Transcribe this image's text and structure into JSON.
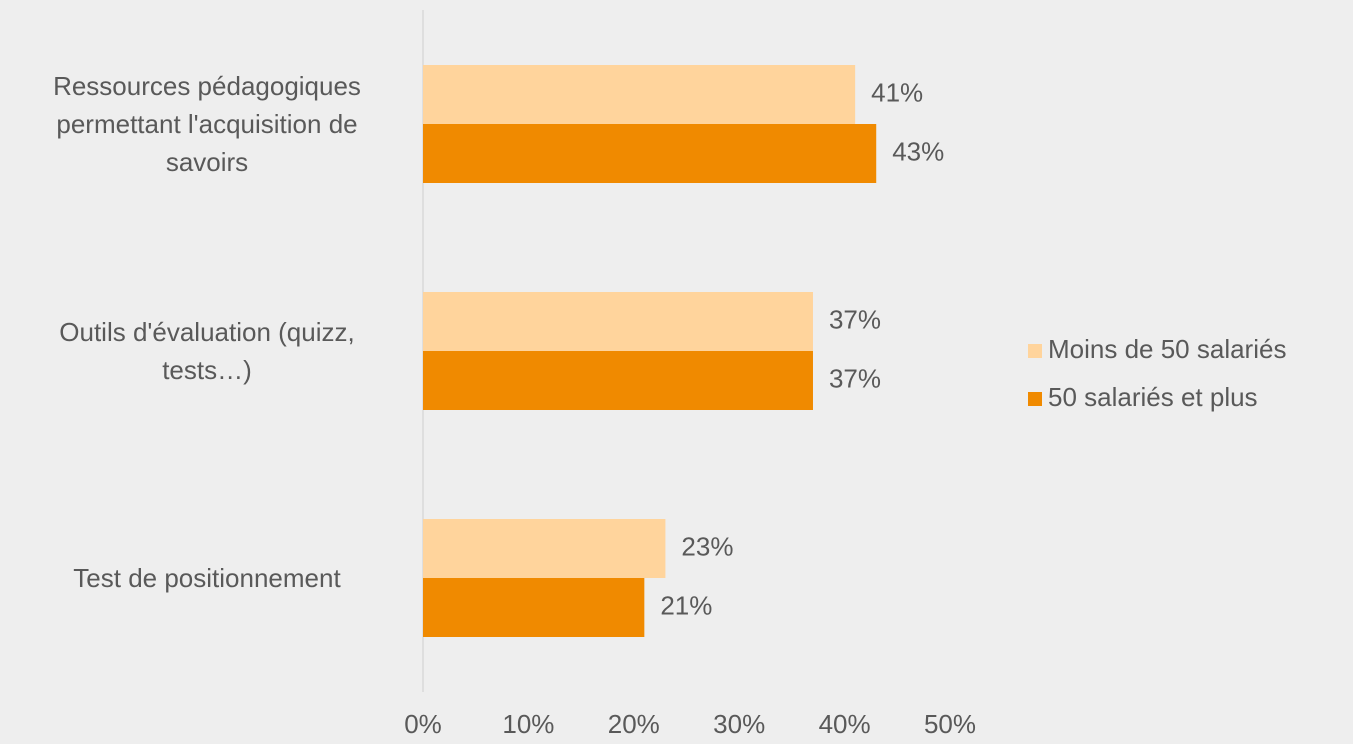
{
  "chart_data": {
    "type": "hbar",
    "categories": [
      "Ressources pédagogiques permettant l'acquisition de savoirs",
      "Outils d'évaluation (quizz, tests…)",
      "Test de positionnement"
    ],
    "series": [
      {
        "name": "Moins de 50 salariés",
        "color": "#ffd49c",
        "values": [
          41,
          37,
          23
        ],
        "value_labels": [
          "41%",
          "37%",
          "23%"
        ]
      },
      {
        "name": "50 salariés et plus",
        "color": "#f08a00",
        "values": [
          43,
          37,
          21
        ],
        "value_labels": [
          "43%",
          "37%",
          "21%"
        ]
      }
    ],
    "xlim": [
      0,
      50
    ],
    "xticks": [
      {
        "value": 0,
        "label": "0%"
      },
      {
        "value": 10,
        "label": "10%"
      },
      {
        "value": 20,
        "label": "20%"
      },
      {
        "value": 30,
        "label": "30%"
      },
      {
        "value": 40,
        "label": "40%"
      },
      {
        "value": 50,
        "label": "50%"
      }
    ],
    "legend": "right"
  }
}
